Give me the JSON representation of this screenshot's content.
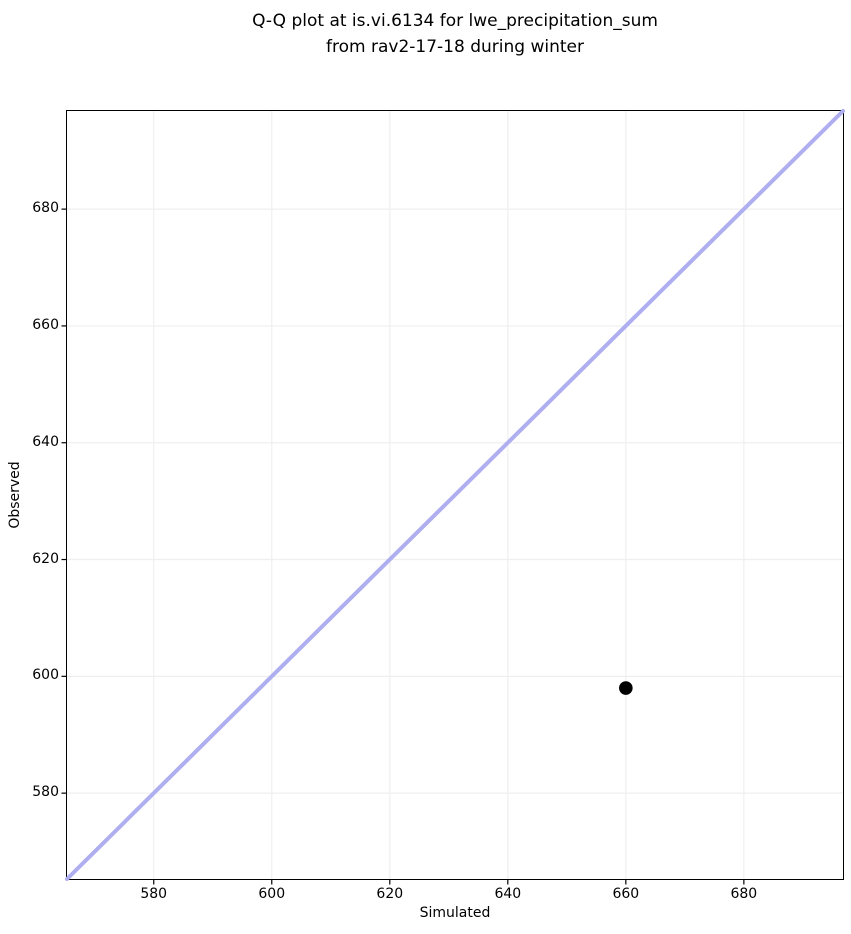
{
  "chart_data": {
    "type": "scatter",
    "title_lines": [
      "Q-Q plot at is.vi.6134 for lwe_precipitation_sum",
      "from rav2-17-18 during winter"
    ],
    "xlabel": "Simulated",
    "ylabel": "Observed",
    "xlim": [
      565.3,
      696.8
    ],
    "ylim": [
      565.3,
      696.8
    ],
    "xticks": [
      580,
      600,
      620,
      640,
      660,
      680
    ],
    "yticks": [
      580,
      600,
      620,
      640,
      660,
      680
    ],
    "grid": true,
    "legend": null,
    "points": [
      {
        "x": 660,
        "y": 598
      }
    ],
    "reference_line": {
      "type": "identity",
      "from": [
        565.3,
        565.3
      ],
      "to": [
        696.8,
        696.8
      ]
    },
    "colors": {
      "point": "#000000",
      "reference_line": "#aeaef0",
      "grid": "#efefef",
      "spine": "#000000",
      "background": "#ffffff",
      "text": "#000000"
    }
  }
}
